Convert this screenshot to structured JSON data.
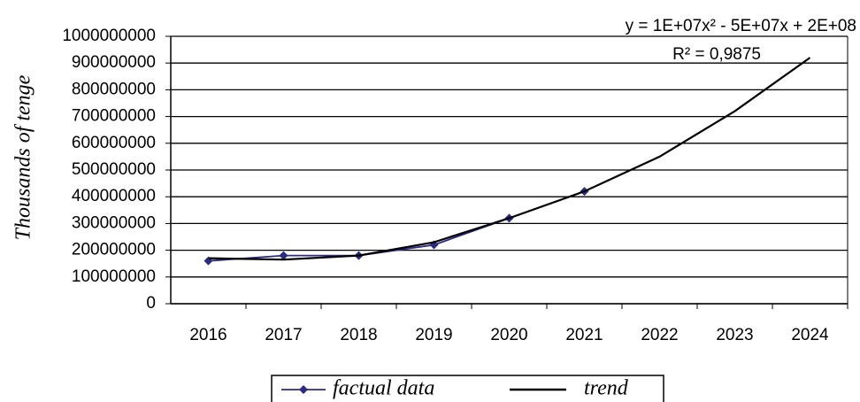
{
  "chart_data": {
    "type": "line",
    "y_label": "Thousands of tenge",
    "trend_equation": "y = 1E+07x² - 5E+07x + 2E+08",
    "r_squared": "R² = 0,9875",
    "categories": [
      "2016",
      "2017",
      "2018",
      "2019",
      "2020",
      "2021",
      "2022",
      "2023",
      "2024"
    ],
    "series": [
      {
        "name": "factual data",
        "color": "#2b2b7f",
        "marker": "diamond",
        "values": [
          160000000,
          180000000,
          180000000,
          220000000,
          320000000,
          420000000,
          null,
          null,
          null
        ]
      },
      {
        "name": "trend",
        "color": "#000000",
        "marker": "none",
        "values": [
          170000000,
          165000000,
          180000000,
          230000000,
          320000000,
          420000000,
          550000000,
          720000000,
          920000000
        ]
      }
    ],
    "ylim": [
      0,
      1000000000
    ],
    "yticks": [
      0,
      100000000,
      200000000,
      300000000,
      400000000,
      500000000,
      600000000,
      700000000,
      800000000,
      900000000,
      1000000000
    ],
    "grid": true,
    "legend": "bottom"
  }
}
